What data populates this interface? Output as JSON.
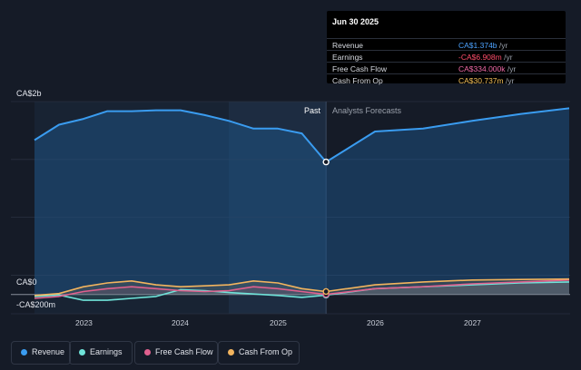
{
  "tooltip": {
    "date": "Jun 30 2025",
    "rows": [
      {
        "label": "Revenue",
        "value": "CA$1.374b",
        "unit": "/yr",
        "color": "#4da3ff"
      },
      {
        "label": "Earnings",
        "value": "-CA$6.908m",
        "unit": "/yr",
        "color": "#ff4d6a"
      },
      {
        "label": "Free Cash Flow",
        "value": "CA$334.000k",
        "unit": "/yr",
        "color": "#f06aa7"
      },
      {
        "label": "Cash From Op",
        "value": "CA$30.737m",
        "unit": "/yr",
        "color": "#f5c15a"
      }
    ]
  },
  "labels": {
    "past": "Past",
    "forecast": "Analysts Forecasts"
  },
  "colors": {
    "revenue": "#3a9cf0",
    "earnings": "#6fe3d9",
    "fcf": "#e0608e",
    "cfo": "#f2b45e",
    "background": "#151b27"
  },
  "legend": [
    {
      "label": "Revenue",
      "color": "#3a9cf0"
    },
    {
      "label": "Earnings",
      "color": "#6fe3d9"
    },
    {
      "label": "Free Cash Flow",
      "color": "#e0608e"
    },
    {
      "label": "Cash From Op",
      "color": "#f2b45e"
    }
  ],
  "chart_data": {
    "type": "area",
    "y_tick_labels": [
      "CA$2b",
      "CA$0",
      "-CA$200m"
    ],
    "x_tick_labels": [
      "2023",
      "2024",
      "2025",
      "2026",
      "2027"
    ],
    "ylim": [
      -200,
      2000
    ],
    "y_unit": "CA$ millions",
    "divider_date": "2025-06-30",
    "series": [
      {
        "name": "Revenue",
        "key": "revenue",
        "x": [
          "2022-06-30",
          "2022-09-30",
          "2022-12-31",
          "2023-03-31",
          "2023-06-30",
          "2023-09-30",
          "2023-12-31",
          "2024-03-31",
          "2024-06-30",
          "2024-09-30",
          "2024-12-31",
          "2025-03-31",
          "2025-06-30",
          "2025-12-31",
          "2026-06-30",
          "2026-12-31",
          "2027-06-30",
          "2027-12-31"
        ],
        "y": [
          1600,
          1760,
          1820,
          1900,
          1900,
          1910,
          1910,
          1860,
          1800,
          1720,
          1720,
          1670,
          1374,
          1690,
          1720,
          1800,
          1870,
          1930
        ]
      },
      {
        "name": "Earnings",
        "key": "earnings",
        "x": [
          "2022-06-30",
          "2022-09-30",
          "2022-12-31",
          "2023-03-31",
          "2023-06-30",
          "2023-09-30",
          "2023-12-31",
          "2024-03-31",
          "2024-06-30",
          "2024-09-30",
          "2024-12-31",
          "2025-03-31",
          "2025-06-30",
          "2025-12-31",
          "2026-06-30",
          "2026-12-31",
          "2027-06-30",
          "2027-12-31"
        ],
        "y": [
          -20,
          -5,
          -60,
          -60,
          -40,
          -20,
          50,
          40,
          20,
          5,
          -10,
          -30,
          -6.908,
          60,
          80,
          100,
          120,
          130
        ]
      },
      {
        "name": "Free Cash Flow",
        "key": "fcf",
        "x": [
          "2022-06-30",
          "2022-09-30",
          "2022-12-31",
          "2023-03-31",
          "2023-06-30",
          "2023-09-30",
          "2023-12-31",
          "2024-03-31",
          "2024-06-30",
          "2024-09-30",
          "2024-12-31",
          "2025-03-31",
          "2025-06-30",
          "2025-12-31",
          "2026-06-30",
          "2026-12-31",
          "2027-06-30",
          "2027-12-31"
        ],
        "y": [
          -40,
          -20,
          30,
          60,
          80,
          60,
          40,
          30,
          40,
          80,
          60,
          30,
          0.334,
          60,
          80,
          110,
          130,
          150
        ]
      },
      {
        "name": "Cash From Op",
        "key": "cfo",
        "x": [
          "2022-06-30",
          "2022-09-30",
          "2022-12-31",
          "2023-03-31",
          "2023-06-30",
          "2023-09-30",
          "2023-12-31",
          "2024-03-31",
          "2024-06-30",
          "2024-09-30",
          "2024-12-31",
          "2025-03-31",
          "2025-06-30",
          "2025-12-31",
          "2026-06-30",
          "2026-12-31",
          "2027-06-30",
          "2027-12-31"
        ],
        "y": [
          -10,
          10,
          80,
          120,
          140,
          100,
          80,
          90,
          100,
          140,
          120,
          60,
          30.737,
          100,
          130,
          150,
          155,
          160
        ]
      }
    ]
  }
}
